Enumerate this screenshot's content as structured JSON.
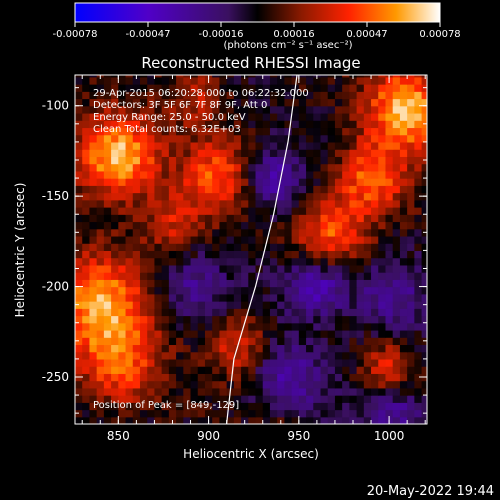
{
  "chart_data": {
    "type": "heatmap",
    "title": "Reconstructed RHESSI Image",
    "xlabel": "Heliocentric X (arcsec)",
    "ylabel": "Heliocentric Y (arcsec)",
    "xlim": [
      826,
      1021
    ],
    "ylim": [
      -276,
      -83
    ],
    "x_ticks": [
      850,
      900,
      950,
      1000
    ],
    "y_ticks": [
      -100,
      -150,
      -200,
      -250
    ],
    "colorbar": {
      "unit_label": "(photons cm⁻² s⁻¹ asec⁻²)",
      "range": [
        -0.00078,
        0.00078
      ],
      "ticks": [
        "-0.00078",
        "-0.00047",
        "-0.00016",
        "0.00016",
        "0.00047",
        "0.00078"
      ],
      "colors": [
        "#0000ff",
        "#5000c8",
        "#3a1060",
        "#000000",
        "#8b1a00",
        "#ff2200",
        "#ff9900",
        "#ffffff"
      ]
    },
    "annotations": [
      "29-Apr-2015 06:20:28.000 to 06:22:32.000",
      "Detectors: 3F 5F 6F 7F 8F 9F, Att 0",
      "Energy Range: 25.0 - 50.0 keV",
      "Clean    Total counts: 6.32E+03"
    ],
    "peak_label": "Position of Peak = [849,-129]",
    "peak": [
      849,
      -129
    ],
    "limb_arc": [
      [
        949,
        -83
      ],
      [
        944,
        -120
      ],
      [
        936,
        -160
      ],
      [
        926,
        -200
      ],
      [
        914,
        -240
      ],
      [
        910,
        -276
      ]
    ],
    "date_stamp": "20-May-2022 19:44",
    "blobs": [
      {
        "x": 850,
        "y": -128,
        "v": 1.0,
        "s": 16
      },
      {
        "x": 840,
        "y": -210,
        "v": 0.8,
        "s": 20
      },
      {
        "x": 852,
        "y": -245,
        "v": 0.55,
        "s": 16
      },
      {
        "x": 905,
        "y": -138,
        "v": 0.6,
        "s": 14
      },
      {
        "x": 880,
        "y": -165,
        "v": 0.4,
        "s": 12
      },
      {
        "x": 915,
        "y": -232,
        "v": 0.5,
        "s": 12
      },
      {
        "x": 893,
        "y": -95,
        "v": 0.35,
        "s": 12
      },
      {
        "x": 1010,
        "y": -102,
        "v": 0.95,
        "s": 16
      },
      {
        "x": 990,
        "y": -140,
        "v": 0.7,
        "s": 14
      },
      {
        "x": 968,
        "y": -170,
        "v": 0.65,
        "s": 14
      },
      {
        "x": 1000,
        "y": -245,
        "v": 0.5,
        "s": 10
      },
      {
        "x": 945,
        "y": -285,
        "v": 0.3,
        "s": 10
      },
      {
        "x": 960,
        "y": -200,
        "v": -0.6,
        "s": 12
      },
      {
        "x": 935,
        "y": -140,
        "v": -0.5,
        "s": 12
      },
      {
        "x": 1000,
        "y": -205,
        "v": -0.4,
        "s": 14
      },
      {
        "x": 945,
        "y": -250,
        "v": -0.45,
        "s": 14
      },
      {
        "x": 890,
        "y": -200,
        "v": -0.35,
        "s": 14
      },
      {
        "x": 1005,
        "y": -270,
        "v": -0.4,
        "s": 12
      }
    ]
  }
}
